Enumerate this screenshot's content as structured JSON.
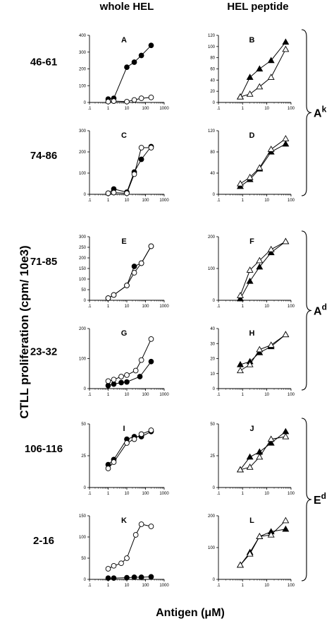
{
  "headers": {
    "left": "whole HEL",
    "right": "HEL peptide"
  },
  "y_axis_label": "CTLL proliferation (cpm/ 10e3)",
  "x_axis_label": "Antigen (μM)",
  "rows": [
    {
      "label": "46-61"
    },
    {
      "label": "74-86"
    },
    {
      "label": "71-85"
    },
    {
      "label": "23-32"
    },
    {
      "label": "106-116"
    },
    {
      "label": "2-16"
    }
  ],
  "mhc_groups": [
    {
      "base": "A",
      "sup": "k",
      "rows": [
        0,
        1
      ]
    },
    {
      "base": "A",
      "sup": "d",
      "rows": [
        2,
        3
      ]
    },
    {
      "base": "E",
      "sup": "d",
      "rows": [
        4,
        5
      ]
    }
  ],
  "colors": {
    "ink": "#000000",
    "open_fill": "#ffffff"
  },
  "chart_data": [
    {
      "id": "A",
      "row": 0,
      "col": 0,
      "type": "line",
      "x_scale": "log",
      "xlim": [
        0.1,
        1000
      ],
      "x_ticks": [
        ".1",
        "1",
        "10",
        "100",
        "1000"
      ],
      "ylim": [
        0,
        400
      ],
      "y_ticks": [
        0,
        100,
        200,
        300,
        400
      ],
      "series": [
        {
          "marker": "filled-circle",
          "x": [
            1,
            2,
            10,
            25,
            60,
            200
          ],
          "y": [
            20,
            25,
            210,
            240,
            280,
            340
          ]
        },
        {
          "marker": "open-circle",
          "x": [
            1,
            2,
            10,
            25,
            60,
            200
          ],
          "y": [
            5,
            8,
            5,
            15,
            25,
            30
          ]
        }
      ]
    },
    {
      "id": "B",
      "row": 0,
      "col": 1,
      "type": "line",
      "x_scale": "log",
      "xlim": [
        0.1,
        100
      ],
      "x_ticks": [
        ".1",
        "1",
        "10",
        "100"
      ],
      "ylim": [
        0,
        120
      ],
      "y_ticks": [
        0,
        20,
        40,
        60,
        80,
        100,
        120
      ],
      "series": [
        {
          "marker": "filled-triangle",
          "x": [
            0.8,
            2,
            5,
            15,
            60
          ],
          "y": [
            10,
            45,
            60,
            75,
            108
          ]
        },
        {
          "marker": "open-triangle",
          "x": [
            0.8,
            2,
            5,
            15,
            60
          ],
          "y": [
            10,
            15,
            28,
            45,
            95
          ]
        }
      ]
    },
    {
      "id": "C",
      "row": 1,
      "col": 0,
      "type": "line",
      "x_scale": "log",
      "xlim": [
        0.1,
        1000
      ],
      "x_ticks": [
        ".1",
        "1",
        "10",
        "100",
        "1000"
      ],
      "ylim": [
        0,
        300
      ],
      "y_ticks": [
        0,
        100,
        200,
        300
      ],
      "series": [
        {
          "marker": "filled-circle",
          "x": [
            1,
            2,
            10,
            25,
            60,
            200
          ],
          "y": [
            5,
            25,
            10,
            105,
            165,
            225
          ]
        },
        {
          "marker": "open-circle",
          "x": [
            1,
            2,
            10,
            25,
            60,
            200
          ],
          "y": [
            5,
            8,
            5,
            95,
            220,
            220
          ]
        }
      ]
    },
    {
      "id": "D",
      "row": 1,
      "col": 1,
      "type": "line",
      "x_scale": "log",
      "xlim": [
        0.1,
        100
      ],
      "x_ticks": [
        ".1",
        "1",
        "10",
        "100"
      ],
      "ylim": [
        0,
        120
      ],
      "y_ticks": [
        0,
        40,
        80,
        120
      ],
      "series": [
        {
          "marker": "filled-triangle",
          "x": [
            0.8,
            2,
            5,
            15,
            60
          ],
          "y": [
            15,
            28,
            48,
            80,
            95
          ]
        },
        {
          "marker": "open-triangle",
          "x": [
            0.8,
            2,
            5,
            15,
            60
          ],
          "y": [
            20,
            32,
            50,
            85,
            105
          ]
        }
      ]
    },
    {
      "id": "E",
      "row": 2,
      "col": 0,
      "type": "line",
      "x_scale": "log",
      "xlim": [
        0.1,
        1000
      ],
      "x_ticks": [
        ".1",
        "1",
        "10",
        "100",
        "1000"
      ],
      "ylim": [
        0,
        300
      ],
      "y_ticks": [
        0,
        50,
        100,
        150,
        200,
        250,
        300
      ],
      "series": [
        {
          "marker": "filled-circle",
          "x": [
            1,
            2,
            10,
            25,
            60,
            200
          ],
          "y": [
            10,
            25,
            70,
            160,
            175,
            255
          ]
        },
        {
          "marker": "open-circle",
          "x": [
            1,
            2,
            10,
            25,
            60,
            200
          ],
          "y": [
            10,
            25,
            70,
            130,
            175,
            255
          ]
        }
      ]
    },
    {
      "id": "F",
      "row": 2,
      "col": 1,
      "type": "line",
      "x_scale": "log",
      "xlim": [
        0.1,
        100
      ],
      "x_ticks": [
        ".1",
        "1",
        "10",
        "100"
      ],
      "ylim": [
        0,
        200
      ],
      "y_ticks": [
        0,
        100,
        200
      ],
      "series": [
        {
          "marker": "filled-triangle",
          "x": [
            0.8,
            2,
            5,
            15,
            60
          ],
          "y": [
            5,
            60,
            105,
            150,
            185
          ]
        },
        {
          "marker": "open-triangle",
          "x": [
            0.8,
            2,
            5,
            15,
            60
          ],
          "y": [
            15,
            95,
            125,
            160,
            185
          ]
        }
      ]
    },
    {
      "id": "G",
      "row": 3,
      "col": 0,
      "type": "line",
      "x_scale": "log",
      "xlim": [
        0.1,
        1000
      ],
      "x_ticks": [
        ".1",
        "1",
        "10",
        "100",
        "1000"
      ],
      "ylim": [
        0,
        200
      ],
      "y_ticks": [
        0,
        100,
        200
      ],
      "series": [
        {
          "marker": "filled-circle",
          "x": [
            1,
            2,
            5,
            10,
            50,
            200
          ],
          "y": [
            10,
            15,
            20,
            22,
            40,
            90
          ]
        },
        {
          "marker": "open-circle",
          "x": [
            1,
            2,
            5,
            10,
            30,
            60,
            200
          ],
          "y": [
            25,
            30,
            40,
            45,
            60,
            95,
            165
          ]
        }
      ]
    },
    {
      "id": "H",
      "row": 3,
      "col": 1,
      "type": "line",
      "x_scale": "log",
      "xlim": [
        0.1,
        100
      ],
      "x_ticks": [
        ".1",
        "1",
        "10",
        "100"
      ],
      "ylim": [
        0,
        40
      ],
      "y_ticks": [
        0,
        10,
        20,
        30,
        40
      ],
      "series": [
        {
          "marker": "filled-triangle",
          "x": [
            0.8,
            2,
            5,
            15,
            60
          ],
          "y": [
            16,
            18,
            24,
            28,
            36
          ]
        },
        {
          "marker": "open-triangle",
          "x": [
            0.8,
            2,
            5,
            15,
            60
          ],
          "y": [
            12,
            16,
            26,
            29,
            36
          ]
        }
      ]
    },
    {
      "id": "I",
      "row": 4,
      "col": 0,
      "type": "line",
      "x_scale": "log",
      "xlim": [
        0.1,
        1000
      ],
      "x_ticks": [
        ".1",
        "1",
        "10",
        "100",
        "1000"
      ],
      "ylim": [
        0,
        50
      ],
      "y_ticks": [
        0,
        25,
        50
      ],
      "series": [
        {
          "marker": "filled-circle",
          "x": [
            1,
            2,
            10,
            25,
            60,
            200
          ],
          "y": [
            18,
            22,
            38,
            40,
            40,
            44
          ]
        },
        {
          "marker": "open-circle",
          "x": [
            1,
            2,
            10,
            25,
            60,
            200
          ],
          "y": [
            15,
            20,
            35,
            38,
            42,
            45
          ]
        }
      ]
    },
    {
      "id": "J",
      "row": 4,
      "col": 1,
      "type": "line",
      "x_scale": "log",
      "xlim": [
        0.1,
        100
      ],
      "x_ticks": [
        ".1",
        "1",
        "10",
        "100"
      ],
      "ylim": [
        0,
        50
      ],
      "y_ticks": [
        0,
        25,
        50
      ],
      "series": [
        {
          "marker": "filled-triangle",
          "x": [
            0.8,
            2,
            5,
            15,
            60
          ],
          "y": [
            14,
            24,
            28,
            35,
            44
          ]
        },
        {
          "marker": "open-triangle",
          "x": [
            0.8,
            2,
            5,
            15,
            60
          ],
          "y": [
            14,
            16,
            24,
            38,
            40
          ]
        }
      ]
    },
    {
      "id": "K",
      "row": 5,
      "col": 0,
      "type": "line",
      "x_scale": "log",
      "xlim": [
        0.1,
        1000
      ],
      "x_ticks": [
        ".1",
        "1",
        "10",
        "100",
        "1000"
      ],
      "ylim": [
        0,
        150
      ],
      "y_ticks": [
        0,
        50,
        100,
        150
      ],
      "series": [
        {
          "marker": "filled-circle",
          "x": [
            1,
            2,
            10,
            25,
            60,
            200
          ],
          "y": [
            3,
            3,
            4,
            5,
            5,
            6
          ]
        },
        {
          "marker": "open-circle",
          "x": [
            1,
            2,
            5,
            10,
            30,
            60,
            200
          ],
          "y": [
            25,
            32,
            38,
            50,
            105,
            130,
            125
          ]
        }
      ]
    },
    {
      "id": "L",
      "row": 5,
      "col": 1,
      "type": "line",
      "x_scale": "log",
      "xlim": [
        0.1,
        100
      ],
      "x_ticks": [
        ".1",
        "1",
        "10",
        "100"
      ],
      "ylim": [
        0,
        200
      ],
      "y_ticks": [
        0,
        100,
        200
      ],
      "series": [
        {
          "marker": "filled-triangle",
          "x": [
            0.8,
            2,
            5,
            15,
            60
          ],
          "y": [
            45,
            85,
            135,
            150,
            158
          ]
        },
        {
          "marker": "open-triangle",
          "x": [
            0.8,
            2,
            5,
            15,
            60
          ],
          "y": [
            45,
            80,
            135,
            140,
            185
          ]
        }
      ]
    }
  ]
}
